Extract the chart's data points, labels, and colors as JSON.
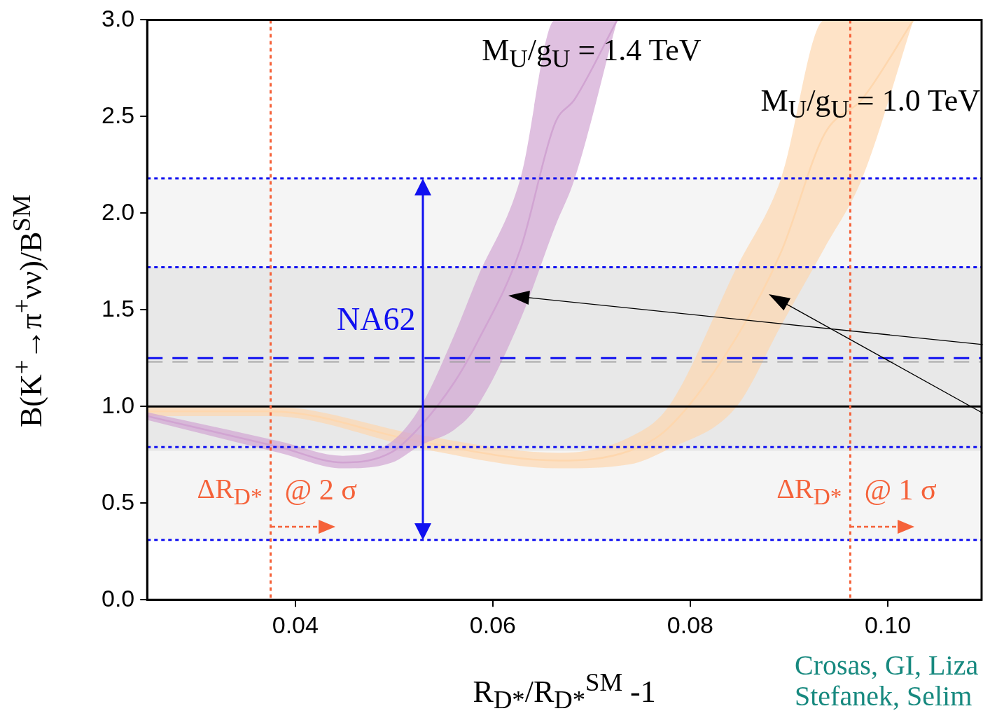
{
  "chart_data": {
    "type": "line",
    "xlabel": "R$_{D*}$/R$_{D*}$$^{SM}$ -1",
    "ylabel": "B(K$^{+}$→π$^{+}$νν)/B$^{SM}$",
    "xlim": [
      0.025,
      0.1095
    ],
    "ylim": [
      0,
      3
    ],
    "xticks": [
      0.04,
      0.06,
      0.08,
      {
        "value": 0.1,
        "label": "0.10"
      }
    ],
    "yticks": [
      {
        "value": 0,
        "label": "0.0"
      },
      0.5,
      {
        "value": 1,
        "label": "1.0"
      },
      1.5,
      {
        "value": 2,
        "label": "2.0"
      },
      2.5,
      {
        "value": 3,
        "label": "3.0"
      }
    ],
    "grid": false,
    "legend": false,
    "series": [
      {
        "name": "M$_{U}$/g$_{U}$ = 1.4 TeV",
        "color": "#d0a4d2",
        "x": [
          0.025,
          0.0384,
          0.0448,
          0.0498,
          0.0527,
          0.0561,
          0.0584,
          0.0628,
          0.0663,
          0.0683,
          0.0726
        ],
        "values": [
          0.95,
          0.79,
          0.71,
          0.765,
          0.9,
          1.125,
          1.33,
          1.815,
          2.465,
          2.59,
          3.0
        ],
        "lower": [
          0.93,
          0.76,
          0.68,
          0.71,
          0.8,
          0.88,
          1.0,
          1.45,
          1.93,
          2.18,
          3.0
        ],
        "upper": [
          0.97,
          0.82,
          0.745,
          0.82,
          1.0,
          1.37,
          1.66,
          2.18,
          3.0,
          3.0,
          3.0
        ]
      },
      {
        "name": "M$_{U}$/g$_{U}$ = 1.0 TeV",
        "color": "#fdd7ae",
        "x": [
          0.025,
          0.0375,
          0.0529,
          0.0667,
          0.0738,
          0.0778,
          0.0847,
          0.0892,
          0.0936,
          0.0974,
          0.1026
        ],
        "values": [
          0.975,
          0.975,
          0.815,
          0.72,
          0.77,
          0.89,
          1.36,
          1.8,
          2.41,
          2.59,
          3.0
        ],
        "lower": [
          0.95,
          0.95,
          0.78,
          0.68,
          0.7,
          0.78,
          1.0,
          1.42,
          1.82,
          2.18,
          3.0
        ],
        "upper": [
          1.0,
          1.0,
          0.85,
          0.76,
          0.84,
          1.0,
          1.72,
          2.18,
          3.0,
          3.0,
          3.0
        ]
      }
    ],
    "bands": [
      {
        "axis": "y",
        "from": 0.31,
        "to": 2.18,
        "color": "#f5f5f5"
      },
      {
        "axis": "y",
        "from": 0.77,
        "to": 1.72,
        "color": "#e8e8e8"
      }
    ],
    "ref_lines": [
      {
        "axis": "y",
        "value": 2.18,
        "color": "#1010f0",
        "line_style": "dotted"
      },
      {
        "axis": "y",
        "value": 1.72,
        "color": "#1010f0",
        "line_style": "dotted"
      },
      {
        "axis": "y",
        "value": 0.79,
        "color": "#1010f0",
        "line_style": "dotted"
      },
      {
        "axis": "y",
        "value": 0.31,
        "color": "#1010f0",
        "line_style": "dotted"
      },
      {
        "axis": "y",
        "value": 1.23,
        "color": "#999999",
        "line_style": "dashed"
      },
      {
        "axis": "y",
        "value": 1.25,
        "color": "#1010f0",
        "line_style": "dashed"
      },
      {
        "axis": "y",
        "value": 1.0,
        "color": "#000000",
        "line_style": "solid"
      },
      {
        "axis": "x",
        "value": 0.0375,
        "label": "ΔR$_{D*}$",
        "color": "#f5623a",
        "line_style": "dotted"
      },
      {
        "axis": "x",
        "value": 0.0962,
        "label": "ΔR$_{D*}$",
        "color": "#f5623a",
        "line_style": "dotted"
      }
    ],
    "annotations": [
      "NA62",
      {
        "text": "@ 2 σ",
        "x": 0.0375,
        "y": 0.55
      },
      {
        "text": "@ 1 σ",
        "x": 0.0962,
        "y": 0.55
      },
      "Crosas, GI, Liza",
      "Stefanek, Selim"
    ]
  }
}
